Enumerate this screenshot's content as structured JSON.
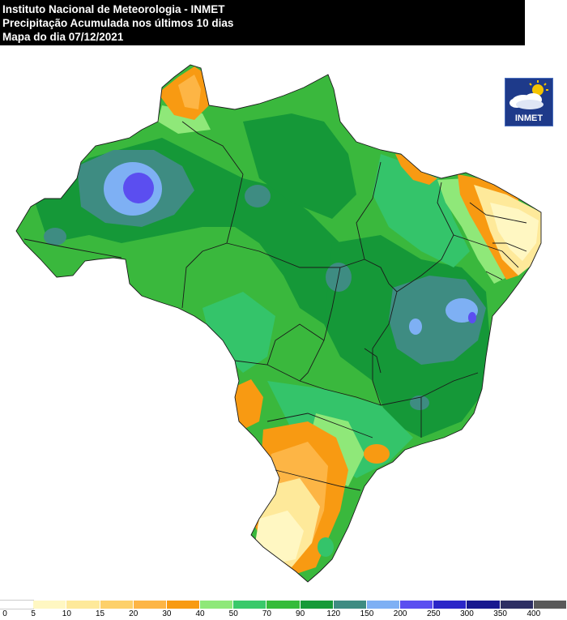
{
  "header": {
    "line1": "Instituto Nacional de Meteorologia - INMET",
    "line2": "Precipitação Acumulada nos últimos 10 dias",
    "line3": "Mapa do dia 07/12/2021"
  },
  "logo": {
    "text": "INMET",
    "icon": "cloud-sun-icon"
  },
  "legend": {
    "labels": [
      "0",
      "5",
      "10",
      "15",
      "20",
      "30",
      "40",
      "50",
      "70",
      "90",
      "120",
      "150",
      "200",
      "250",
      "300",
      "350",
      "400"
    ],
    "colors": [
      "#ffffff",
      "#fff7c2",
      "#fee99a",
      "#fdd06a",
      "#fdb545",
      "#f89a12",
      "#8fe879",
      "#3ac96a",
      "#36bb3a",
      "#169a38",
      "#3e8c82",
      "#7eb0f4",
      "#5b4ef0",
      "#2b26c8",
      "#18188f",
      "#2d2e63",
      "#595959"
    ]
  },
  "colors": {
    "green": "#3ab83d",
    "dark_green": "#159838",
    "mid_green": "#34c46a",
    "light_green": "#8fe879",
    "teal": "#3e8c82",
    "light_blue": "#7eb0f4",
    "violet": "#5b4ef0",
    "orange": "#f89a12",
    "light_orange": "#fdb545",
    "yellow": "#fee99a",
    "pale": "#fff7c2"
  }
}
